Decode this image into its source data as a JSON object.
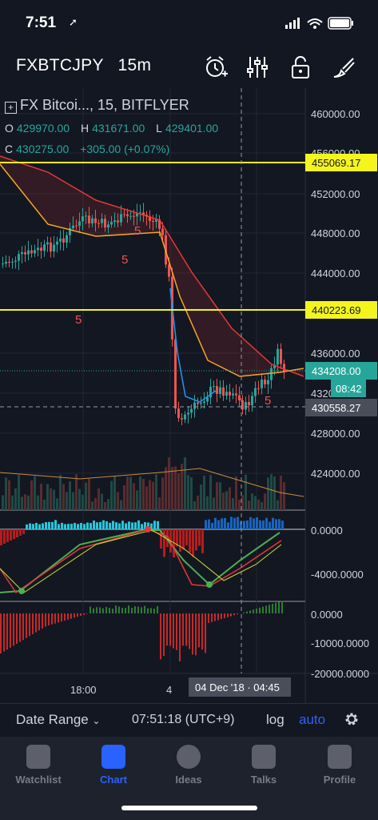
{
  "status_bar": {
    "time": "7:51",
    "location_arrow": "➚"
  },
  "header": {
    "symbol": "FXBTCJPY",
    "interval": "15m",
    "icons": [
      "alarm-add-icon",
      "indicators-icon",
      "lock-icon",
      "drawing-icon"
    ]
  },
  "legend": {
    "title": "FX Bitcoi..., 15, BITFLYER",
    "o_label": "O",
    "o": "429970.00",
    "h_label": "H",
    "h": "431671.00",
    "l_label": "L",
    "l": "429401.00",
    "c_label": "C",
    "c": "430275.00",
    "change": "+305.00 (+0.07%)"
  },
  "price_axis": {
    "ticks": [
      "460000.00",
      "456000.00",
      "452000.00",
      "448000.00",
      "444000.00",
      "436000.00",
      "432000.00",
      "428000.00",
      "424000.00"
    ],
    "hline_top": "455069.17",
    "hline_mid": "440223.69",
    "last_price": "434208.00",
    "countdown": "08:42",
    "crosshair_price": "430558.27"
  },
  "markers": [
    "5",
    "5",
    "5",
    "5"
  ],
  "osc1_axis": {
    "ticks": [
      "0.0000",
      "-4000.0000"
    ]
  },
  "osc2_axis": {
    "ticks": [
      "0.0000",
      "-10000.0000",
      "-20000.0000"
    ]
  },
  "time_axis": {
    "ticks": [
      "18:00",
      "4"
    ],
    "crosshair": "04 Dec '18 · 04:45"
  },
  "bottom_bar": {
    "date_range": "Date Range",
    "clock": "07:51:18 (UTC+9)",
    "log": "log",
    "auto": "auto"
  },
  "tabs": [
    {
      "label": "Watchlist",
      "icon": "watchlist-icon"
    },
    {
      "label": "Chart",
      "icon": "chart-icon"
    },
    {
      "label": "Ideas",
      "icon": "ideas-icon"
    },
    {
      "label": "Talks",
      "icon": "talks-icon"
    },
    {
      "label": "Profile",
      "icon": "profile-icon"
    }
  ],
  "colors": {
    "up": "#26a69a",
    "down": "#ef5350",
    "hline": "#f5f51e",
    "ma_red": "#e53935",
    "ma_orange": "#f5a623",
    "ma_blue": "#2196f3",
    "accent": "#2962ff"
  }
}
